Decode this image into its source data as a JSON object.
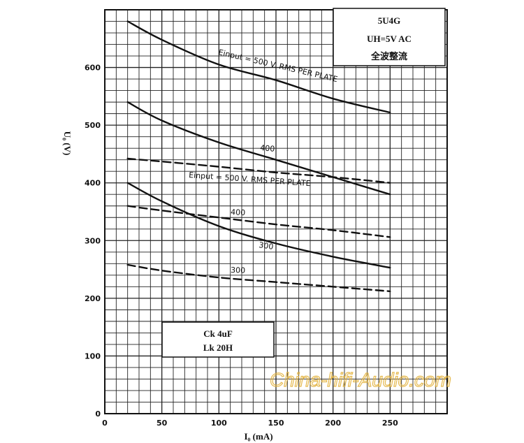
{
  "chart_data": {
    "type": "line",
    "xlabel": "I₀ (mA)",
    "ylabel": "U₀ (V)",
    "xlim": [
      0,
      300
    ],
    "ylim": [
      0,
      700
    ],
    "x_ticks": [
      0,
      50,
      100,
      150,
      200,
      250
    ],
    "y_ticks": [
      0,
      100,
      200,
      300,
      400,
      500,
      600
    ],
    "grid": true,
    "info_box_top": {
      "lines": [
        "5U4G",
        "UH=5V AC",
        "全波整流"
      ]
    },
    "info_box_bottom": {
      "lines": [
        "Ck  4uF",
        "Lk  20H"
      ]
    },
    "series": [
      {
        "label": "Einput = 500 V. RMS PER PLATE",
        "style": "solid",
        "x": [
          20,
          50,
          100,
          150,
          200,
          250
        ],
        "y": [
          680,
          648,
          605,
          578,
          546,
          522
        ]
      },
      {
        "label": "400",
        "style": "solid",
        "x": [
          20,
          50,
          100,
          150,
          200,
          250
        ],
        "y": [
          540,
          508,
          470,
          440,
          410,
          380
        ]
      },
      {
        "label": "300",
        "style": "solid",
        "x": [
          20,
          50,
          100,
          150,
          200,
          250
        ],
        "y": [
          400,
          368,
          325,
          295,
          272,
          253
        ]
      },
      {
        "label": "Einput = 500 V. RMS PER PLATE",
        "style": "dashed",
        "x": [
          20,
          50,
          100,
          150,
          200,
          250
        ],
        "y": [
          442,
          437,
          428,
          418,
          410,
          400
        ]
      },
      {
        "label": "400",
        "style": "dashed",
        "x": [
          20,
          50,
          100,
          150,
          200,
          250
        ],
        "y": [
          360,
          352,
          340,
          328,
          318,
          306
        ]
      },
      {
        "label": "300",
        "style": "dashed",
        "x": [
          20,
          50,
          100,
          150,
          200,
          250
        ],
        "y": [
          258,
          248,
          236,
          228,
          220,
          212
        ]
      }
    ]
  },
  "watermark": "China-hifi-Audio.com"
}
